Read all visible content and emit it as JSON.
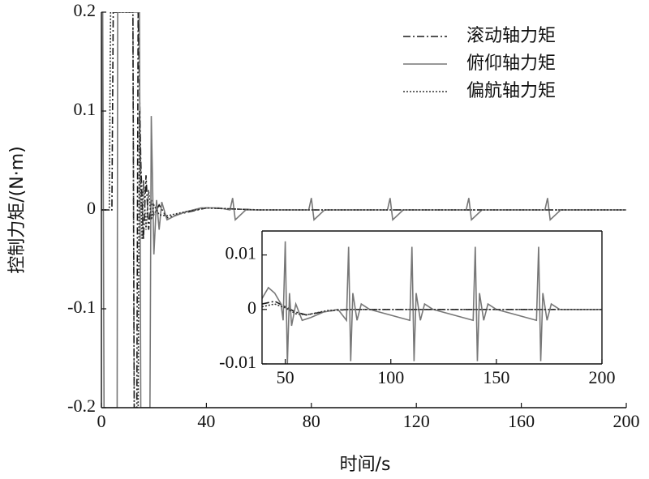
{
  "chart_data": [
    {
      "type": "line",
      "x_label": "时间/s",
      "y_label": "控制力矩/(N·m)",
      "xlim": [
        0,
        200
      ],
      "xticks": [
        0,
        40,
        80,
        120,
        160,
        200
      ],
      "ylim": [
        -0.2,
        0.2
      ],
      "yticks": [
        -0.2,
        -0.1,
        0,
        0.1,
        0.2
      ],
      "legend": "upper right",
      "series": [
        {
          "name": "滚动轴力矩",
          "color": "#1a1a1a",
          "linestyle": "dashdot",
          "x": [
            0,
            4,
            4.5,
            12,
            12.5,
            13.5,
            14,
            15,
            16,
            17,
            18,
            19,
            20,
            22,
            25,
            30,
            40,
            50,
            60,
            200
          ],
          "values": [
            0,
            0,
            0.2,
            0.2,
            -0.2,
            -0.2,
            0.2,
            0.05,
            -0.03,
            0.035,
            -0.02,
            0.01,
            -0.005,
            0.005,
            -0.008,
            -0.004,
            0.002,
            0.001,
            0,
            0
          ]
        },
        {
          "name": "俯仰轴力矩",
          "color": "#777777",
          "linestyle": "solid",
          "x": [
            0,
            0.5,
            1,
            6,
            6.2,
            14.5,
            15,
            18.5,
            19,
            20,
            21,
            22,
            23,
            25,
            28,
            32,
            38,
            45,
            49,
            50,
            51,
            55,
            79,
            80,
            81,
            85,
            109,
            110,
            111,
            115,
            139,
            140,
            141,
            145,
            169,
            170,
            171,
            175,
            200
          ],
          "values": [
            0,
            0.2,
            -0.2,
            -0.2,
            0.2,
            0.2,
            -0.2,
            -0.2,
            0.095,
            -0.045,
            0.01,
            -0.02,
            0.008,
            -0.01,
            -0.006,
            -0.002,
            0.002,
            0.002,
            0,
            0.012,
            -0.01,
            0,
            0,
            0.012,
            -0.01,
            0,
            0,
            0.012,
            -0.01,
            0,
            0,
            0.012,
            -0.01,
            0,
            0,
            0.012,
            -0.01,
            0,
            0
          ]
        },
        {
          "name": "偏航轴力矩",
          "color": "#333333",
          "linestyle": "dotted",
          "x": [
            0,
            3,
            3.5,
            12,
            12.5,
            14,
            14.5,
            15.5,
            16,
            17,
            18,
            19,
            20,
            22,
            25,
            30,
            40,
            50,
            60,
            200
          ],
          "values": [
            0,
            0,
            0.2,
            0.2,
            -0.2,
            -0.2,
            0.1,
            -0.03,
            0.03,
            -0.02,
            0.02,
            -0.01,
            0.005,
            -0.005,
            -0.006,
            -0.003,
            0.002,
            0.001,
            0,
            0
          ]
        }
      ]
    },
    {
      "type": "line",
      "xlim": [
        39,
        200
      ],
      "xticks": [
        50,
        100,
        150,
        200
      ],
      "ylim": [
        -0.01,
        0.0144
      ],
      "yticks": [
        -0.01,
        0,
        0.01
      ],
      "series": [
        {
          "color": "#1a1a1a",
          "linestyle": "dashdot",
          "x": [
            39,
            45,
            50,
            55,
            60,
            70,
            80,
            200
          ],
          "values": [
            0.001,
            0.0015,
            0.0005,
            -0.0005,
            -0.001,
            -0.0003,
            0,
            0
          ]
        },
        {
          "color": "#777777",
          "linestyle": "solid",
          "x": [
            39,
            42,
            45,
            48,
            49,
            50,
            51,
            52,
            53,
            55,
            58,
            62,
            68,
            75,
            79,
            80,
            81,
            82,
            84,
            86,
            90,
            109,
            110,
            111,
            112,
            114,
            116,
            120,
            139,
            140,
            141,
            142,
            144,
            146,
            150,
            169,
            170,
            171,
            172,
            174,
            176,
            180,
            200
          ],
          "values": [
            0.002,
            0.004,
            0.003,
            0.001,
            -0.002,
            0.0125,
            -0.01,
            0.003,
            -0.003,
            0.001,
            -0.002,
            -0.0015,
            -0.0005,
            0,
            -0.002,
            0.0115,
            -0.0095,
            0.003,
            -0.002,
            0.001,
            0,
            -0.002,
            0.0115,
            -0.0095,
            0.003,
            -0.002,
            0.001,
            0,
            -0.002,
            0.0115,
            -0.0095,
            0.003,
            -0.002,
            0.001,
            0,
            -0.002,
            0.0115,
            -0.0095,
            0.003,
            -0.002,
            0.001,
            0,
            0
          ]
        },
        {
          "color": "#333333",
          "linestyle": "dotted",
          "x": [
            39,
            45,
            50,
            55,
            60,
            70,
            80,
            200
          ],
          "values": [
            0.0005,
            0.001,
            0.0003,
            -0.0008,
            -0.001,
            -0.0002,
            0,
            0
          ]
        }
      ]
    }
  ]
}
